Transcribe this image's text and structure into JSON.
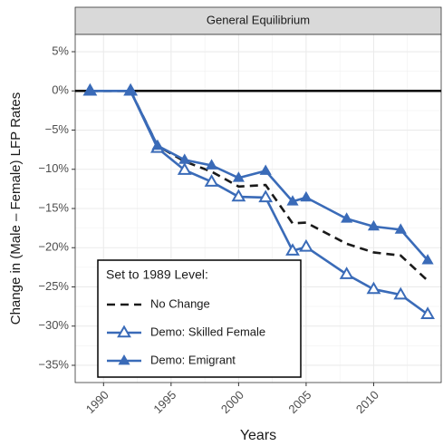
{
  "chart_data": {
    "type": "line",
    "title": "General Equilibrium",
    "x_label": "Years",
    "y_label": "Change in (Male – Female) LFP Rates",
    "x": [
      1989,
      1992,
      1994,
      1996,
      1998,
      2000,
      2002,
      2004,
      2005,
      2008,
      2010,
      2012,
      2014
    ],
    "series": [
      {
        "name": "No Change",
        "color": "#1a1a1a",
        "dash": true,
        "marker": "none",
        "values": [
          0,
          0,
          -7.0,
          -9.0,
          -10.3,
          -12.2,
          -12.0,
          -16.9,
          -16.8,
          -19.5,
          -20.6,
          -21.0,
          -24.2
        ]
      },
      {
        "name": "Demo: Skilled Female",
        "color": "#3a6bb8",
        "dash": false,
        "marker": "open-triangle",
        "values": [
          0,
          0,
          -7.3,
          -10.1,
          -11.6,
          -13.5,
          -13.6,
          -20.4,
          -19.9,
          -23.4,
          -25.3,
          -26.0,
          -28.5
        ]
      },
      {
        "name": "Demo: Emigrant",
        "color": "#3a6bb8",
        "dash": false,
        "marker": "filled-triangle",
        "values": [
          0,
          0,
          -7.0,
          -8.8,
          -9.5,
          -11.1,
          -10.2,
          -14.1,
          -13.6,
          -16.3,
          -17.3,
          -17.7,
          -21.6
        ]
      }
    ],
    "legend_title": "Set to 1989 Level:",
    "legend_position": "bottom-left",
    "hline": 0,
    "xlim": [
      1987.9,
      2015.0
    ],
    "ylim": [
      -37.2,
      7.2
    ],
    "xticks": [
      1990,
      1995,
      2000,
      2005,
      2010
    ],
    "yticks": [
      {
        "value": 5,
        "label": "5%"
      },
      {
        "value": 0,
        "label": "0%"
      },
      {
        "value": -5,
        "label": "−5%"
      },
      {
        "value": -10,
        "label": "−10%"
      },
      {
        "value": -15,
        "label": "−15%"
      },
      {
        "value": -20,
        "label": "−20%"
      },
      {
        "value": -25,
        "label": "−25%"
      },
      {
        "value": -30,
        "label": "−30%"
      },
      {
        "value": -35,
        "label": "−35%"
      }
    ],
    "grid": true
  }
}
